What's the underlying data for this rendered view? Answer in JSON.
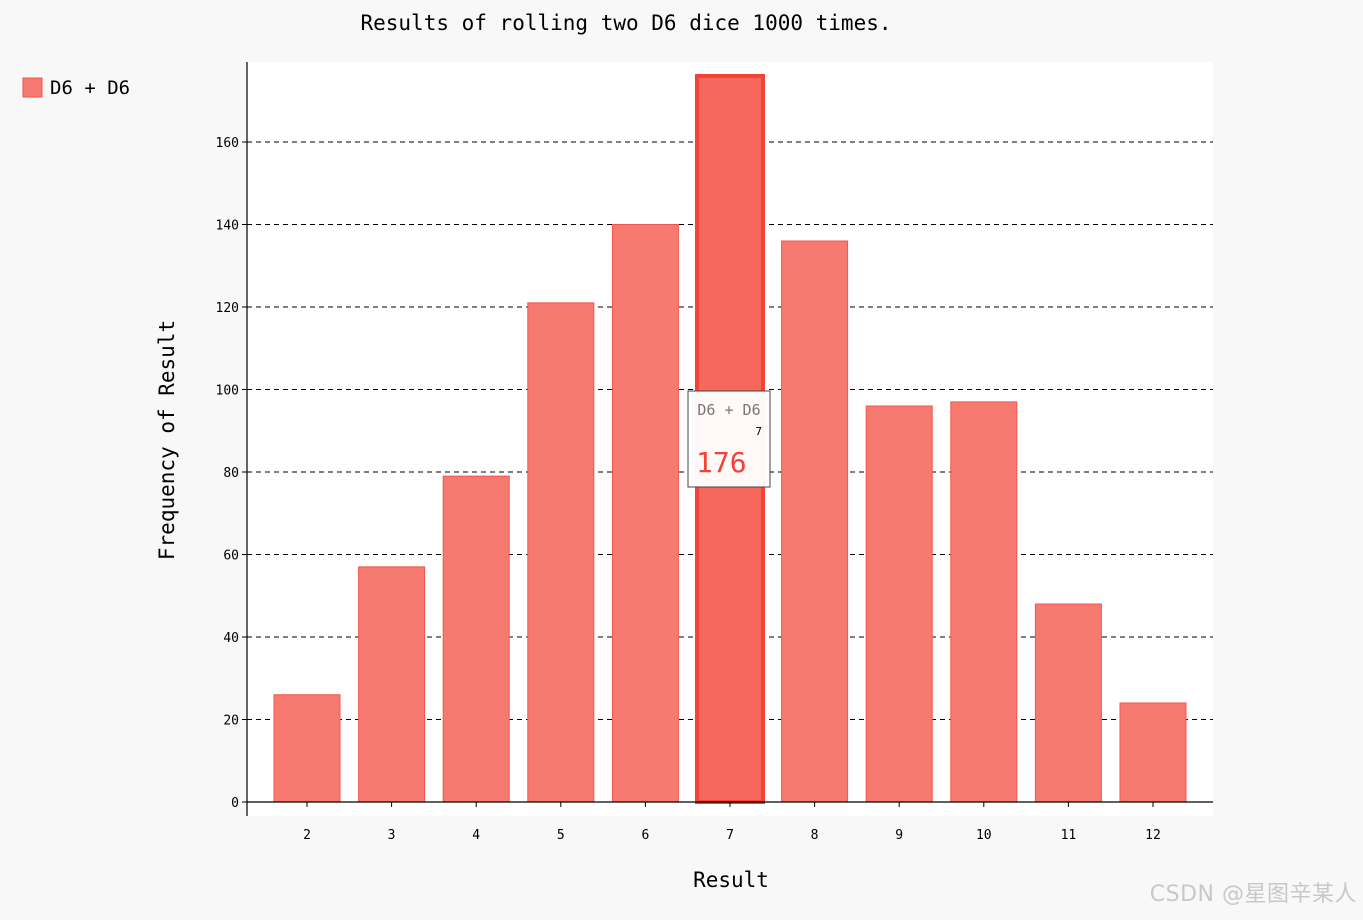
{
  "chart_data": {
    "type": "bar",
    "title": "Results of rolling two D6 dice 1000 times.",
    "xlabel": "Result",
    "ylabel": "Frequency of Result",
    "categories": [
      "2",
      "3",
      "4",
      "5",
      "6",
      "7",
      "8",
      "9",
      "10",
      "11",
      "12"
    ],
    "series": [
      {
        "name": "D6 + D6",
        "values": [
          26,
          57,
          79,
          121,
          140,
          176,
          136,
          96,
          97,
          48,
          24
        ]
      }
    ],
    "ylim": [
      0,
      180
    ],
    "yticks": [
      0,
      20,
      40,
      60,
      80,
      100,
      120,
      140,
      160
    ],
    "grid": "horizontal dashed",
    "legend_position": "top-left",
    "highlighted_category": "7",
    "tooltip": {
      "series": "D6 + D6",
      "category": "7",
      "value": "176"
    },
    "colors": {
      "bar_fill": "#f77a70",
      "bar_stroke": "#f0564b",
      "highlight_fill": "#f6675c",
      "highlight_stroke": "#f44336",
      "tooltip_value": "#f44336",
      "plot_background": "#ffffff",
      "page_background": "#f8f8f8"
    }
  },
  "watermark": "CSDN @星图辛某人"
}
